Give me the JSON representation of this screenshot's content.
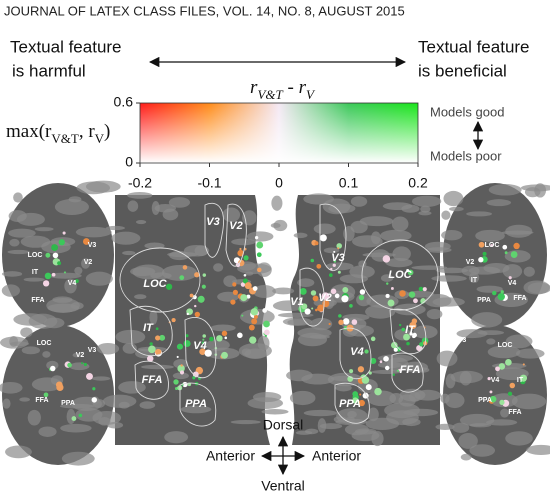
{
  "header": "JOURNAL OF LATEX CLASS FILES, VOL. 14, NO. 8, AUGUST 2015",
  "left_note": [
    "Textual feature",
    "is harmful"
  ],
  "right_note": [
    "Textual feature",
    "is beneficial"
  ],
  "colorbar": {
    "title_parts": [
      "r",
      "V&T",
      " - r",
      "V"
    ],
    "ylabel_parts": [
      "max(r",
      "V&T",
      ", r",
      "V",
      ")"
    ],
    "xlim": [
      -0.2,
      0.2
    ],
    "xticks": [
      -0.2,
      -0.1,
      0,
      0.1,
      0.2
    ],
    "ylim": [
      0,
      0.6
    ],
    "yticks": [
      0,
      0.6
    ],
    "top_label": "Models good",
    "bottom_label": "Models poor"
  },
  "flatmap": {
    "left_labels": [
      "V3",
      "V2",
      "LOC",
      "IT",
      "V4",
      "FFA",
      "PPA"
    ],
    "right_labels": [
      "V3",
      "V1",
      "V2",
      "LOC",
      "IT",
      "V4",
      "FFA",
      "PPA"
    ]
  },
  "lateral": [
    {
      "labels": [
        "V3",
        "LOC",
        "V2",
        "IT",
        "V4",
        "FFA"
      ]
    },
    {
      "labels": [
        "V3",
        "V2",
        "LOC",
        "PPA",
        "FFA"
      ]
    },
    {
      "labels": [
        "LOC",
        "V2",
        "IT",
        "V4",
        "FFA",
        "PPA"
      ]
    },
    {
      "labels": [
        "V3",
        "LOC",
        "IT",
        "V4",
        "PPA",
        "FFA"
      ]
    }
  ],
  "orientation": {
    "dorsal": "Dorsal",
    "ventral": "Ventral",
    "left": "Anterior",
    "right": "Anterior"
  }
}
